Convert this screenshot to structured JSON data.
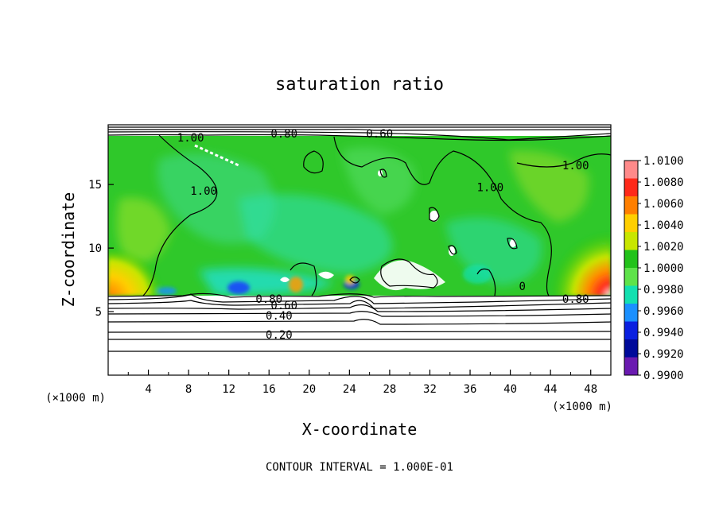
{
  "chart_data": {
    "type": "heatmap",
    "title": "saturation ratio",
    "xlabel": "X-coordinate",
    "ylabel": "Z-coordinate",
    "x_units": "(×1000 m)",
    "y_units": "(×1000 m)",
    "footer": "CONTOUR INTERVAL = 1.000E-01",
    "xlim": [
      0,
      50
    ],
    "ylim": [
      0,
      19.7
    ],
    "x_ticks": [
      4,
      8,
      12,
      16,
      20,
      24,
      28,
      32,
      36,
      40,
      44,
      48
    ],
    "y_ticks": [
      5,
      10,
      15
    ],
    "colorbar": {
      "levels": [
        "1.0100",
        "1.0080",
        "1.0060",
        "1.0040",
        "1.0020",
        "1.0000",
        "0.9980",
        "0.9960",
        "0.9940",
        "0.9920",
        "0.9900"
      ],
      "colors": [
        "#ff8a8a",
        "#ff2a1a",
        "#ff7f00",
        "#ffcf00",
        "#c8e600",
        "#22c21a",
        "#5ee34a",
        "#12e0b0",
        "#1a90ff",
        "#0a20e0",
        "#000a9a",
        "#6a1ab0"
      ]
    },
    "contour_labels": [
      {
        "text": "1.00",
        "x": 8.2,
        "z": 18.7
      },
      {
        "text": "0.80",
        "x": 17.5,
        "z": 19.0
      },
      {
        "text": "0.60",
        "x": 27.0,
        "z": 19.0
      },
      {
        "text": "1.00",
        "x": 9.5,
        "z": 14.5
      },
      {
        "text": "1.00",
        "x": 46.5,
        "z": 16.5
      },
      {
        "text": "1.00",
        "x": 38.0,
        "z": 14.8
      },
      {
        "text": "0.80",
        "x": 16.0,
        "z": 6.0
      },
      {
        "text": "0.60",
        "x": 17.5,
        "z": 5.5
      },
      {
        "text": "0.40",
        "x": 17.0,
        "z": 4.7
      },
      {
        "text": "0.20",
        "x": 17.0,
        "z": 3.2
      },
      {
        "text": "0.80",
        "x": 46.5,
        "z": 6.0
      },
      {
        "text": "0",
        "x": 41.2,
        "z": 7.0
      }
    ],
    "contour_levels_lower": [
      0.2,
      0.4,
      0.6,
      0.8
    ]
  }
}
